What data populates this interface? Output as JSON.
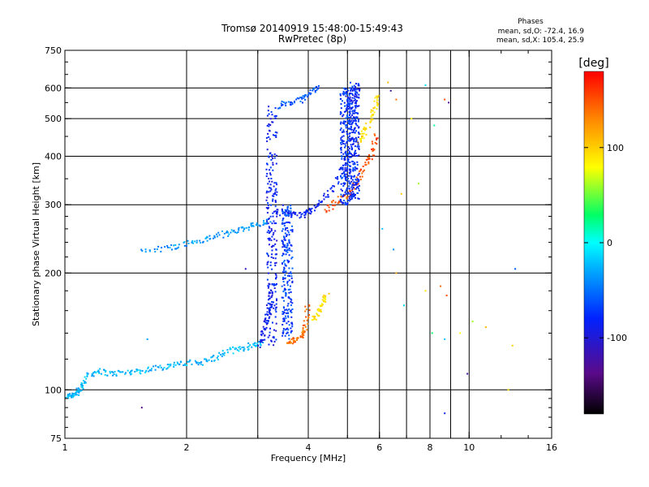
{
  "header": {
    "title_line1": "Tromsø 20140919 15:48:00-15:49:43",
    "title_line2": "RwPretec (8p)"
  },
  "stats": {
    "label": "Phases",
    "o_line": "mean, sd,O: -72.4, 16.9",
    "x_line": "mean, sd,X: 105.4, 25.9"
  },
  "chart_data": {
    "type": "scatter",
    "title": "Tromsø 20140919 15:48:00-15:49:43",
    "subtitle": "RwPretec (8p)",
    "xlabel": "Frequency [MHz]",
    "ylabel": "Stationary phase Virtual Height [km]",
    "x_scale": "log",
    "y_scale": "log",
    "xlim": [
      1,
      16
    ],
    "ylim": [
      75,
      750
    ],
    "xticks": [
      1,
      2,
      4,
      6,
      8,
      10,
      16
    ],
    "x_minor": [
      3,
      5,
      7,
      9
    ],
    "yticks": [
      75,
      100,
      200,
      300,
      400,
      500,
      600,
      750
    ],
    "grid": true,
    "colorbar": {
      "label": "[deg]",
      "range": [
        -180,
        180
      ],
      "ticks": [
        -100,
        0,
        100
      ]
    },
    "traces": [
      {
        "name": "",
        "phase": -25,
        "points": [
          [
            1.0,
            96
          ],
          [
            1.04,
            97
          ],
          [
            1.07,
            98
          ],
          [
            1.1,
            101
          ],
          [
            1.13,
            108
          ],
          [
            1.2,
            112
          ],
          [
            1.3,
            110
          ],
          [
            1.42,
            111
          ],
          [
            1.55,
            112
          ],
          [
            1.7,
            114
          ],
          [
            1.85,
            116
          ],
          [
            2.0,
            117
          ],
          [
            2.2,
            118
          ],
          [
            2.35,
            121
          ],
          [
            2.55,
            126
          ],
          [
            2.75,
            128
          ],
          [
            2.95,
            131
          ],
          [
            3.1,
            133
          ]
        ]
      },
      {
        "name": "",
        "phase": -35,
        "points": [
          [
            1.55,
            228
          ],
          [
            1.8,
            232
          ],
          [
            2.0,
            238
          ],
          [
            2.2,
            243
          ],
          [
            2.4,
            250
          ],
          [
            2.6,
            255
          ],
          [
            2.8,
            262
          ],
          [
            3.0,
            266
          ],
          [
            3.2,
            272
          ]
        ]
      },
      {
        "name": "",
        "phase": -90,
        "points": [
          [
            3.05,
            130
          ],
          [
            3.1,
            140
          ],
          [
            3.15,
            150
          ],
          [
            3.2,
            160
          ],
          [
            3.22,
            175
          ],
          [
            3.25,
            190
          ]
        ]
      },
      {
        "name": "",
        "phase": -85,
        "points": [
          [
            3.3,
            290
          ],
          [
            3.5,
            285
          ],
          [
            3.7,
            282
          ],
          [
            3.9,
            283
          ],
          [
            4.1,
            290
          ],
          [
            4.3,
            305
          ],
          [
            4.6,
            330
          ],
          [
            4.9,
            375
          ],
          [
            5.1,
            430
          ],
          [
            5.2,
            500
          ],
          [
            5.25,
            560
          ],
          [
            5.3,
            610
          ]
        ]
      },
      {
        "name": "",
        "phase": -60,
        "points": [
          [
            3.35,
            540
          ],
          [
            3.6,
            548
          ],
          [
            3.85,
            560
          ],
          [
            4.05,
            585
          ],
          [
            4.25,
            610
          ]
        ]
      },
      {
        "name": "",
        "phase": 140,
        "points": [
          [
            3.55,
            132
          ],
          [
            3.7,
            134
          ],
          [
            3.85,
            137
          ],
          [
            3.95,
            148
          ],
          [
            4.0,
            165
          ]
        ]
      },
      {
        "name": "",
        "phase": 90,
        "points": [
          [
            4.1,
            152
          ],
          [
            4.25,
            158
          ],
          [
            4.35,
            168
          ],
          [
            4.45,
            175
          ]
        ]
      },
      {
        "name": "",
        "phase": 150,
        "points": [
          [
            4.4,
            290
          ],
          [
            4.7,
            305
          ],
          [
            5.0,
            320
          ],
          [
            5.3,
            345
          ],
          [
            5.55,
            375
          ],
          [
            5.75,
            410
          ],
          [
            5.9,
            460
          ]
        ]
      },
      {
        "name": "",
        "phase": 95,
        "points": [
          [
            5.3,
            430
          ],
          [
            5.5,
            460
          ],
          [
            5.7,
            495
          ],
          [
            5.85,
            535
          ],
          [
            5.95,
            575
          ]
        ]
      }
    ],
    "vertical_segments": [
      {
        "x": 3.25,
        "y0": 130,
        "y1": 540,
        "phase": -85
      },
      {
        "x": 3.55,
        "y0": 135,
        "y1": 300,
        "phase": -70
      },
      {
        "x": 4.95,
        "y0": 300,
        "y1": 600,
        "phase": -75
      },
      {
        "x": 5.2,
        "y0": 310,
        "y1": 620,
        "phase": -80
      }
    ],
    "sparse_points": [
      {
        "x": 6.3,
        "y": 620,
        "phase": 110
      },
      {
        "x": 6.4,
        "y": 590,
        "phase": -120
      },
      {
        "x": 6.6,
        "y": 560,
        "phase": 140
      },
      {
        "x": 7.2,
        "y": 500,
        "phase": 80
      },
      {
        "x": 7.8,
        "y": 610,
        "phase": -10
      },
      {
        "x": 8.2,
        "y": 480,
        "phase": 20
      },
      {
        "x": 8.7,
        "y": 560,
        "phase": 150
      },
      {
        "x": 8.9,
        "y": 550,
        "phase": -130
      },
      {
        "x": 7.5,
        "y": 340,
        "phase": 60
      },
      {
        "x": 6.8,
        "y": 320,
        "phase": 100
      },
      {
        "x": 6.1,
        "y": 260,
        "phase": -20
      },
      {
        "x": 6.5,
        "y": 230,
        "phase": -40
      },
      {
        "x": 6.6,
        "y": 200,
        "phase": 120
      },
      {
        "x": 7.8,
        "y": 180,
        "phase": 90
      },
      {
        "x": 8.5,
        "y": 185,
        "phase": 140
      },
      {
        "x": 8.8,
        "y": 175,
        "phase": 150
      },
      {
        "x": 6.9,
        "y": 165,
        "phase": -15
      },
      {
        "x": 8.1,
        "y": 140,
        "phase": 30
      },
      {
        "x": 8.7,
        "y": 135,
        "phase": -20
      },
      {
        "x": 9.5,
        "y": 140,
        "phase": 80
      },
      {
        "x": 10.2,
        "y": 150,
        "phase": 60
      },
      {
        "x": 9.9,
        "y": 110,
        "phase": -120
      },
      {
        "x": 12.5,
        "y": 100,
        "phase": 90
      },
      {
        "x": 12.8,
        "y": 130,
        "phase": 100
      },
      {
        "x": 8.7,
        "y": 87,
        "phase": -90
      },
      {
        "x": 13.0,
        "y": 205,
        "phase": -60
      },
      {
        "x": 1.55,
        "y": 90,
        "phase": -140
      },
      {
        "x": 1.6,
        "y": 135,
        "phase": -30
      },
      {
        "x": 2.8,
        "y": 205,
        "phase": -110
      },
      {
        "x": 11.0,
        "y": 145,
        "phase": 110
      }
    ]
  }
}
